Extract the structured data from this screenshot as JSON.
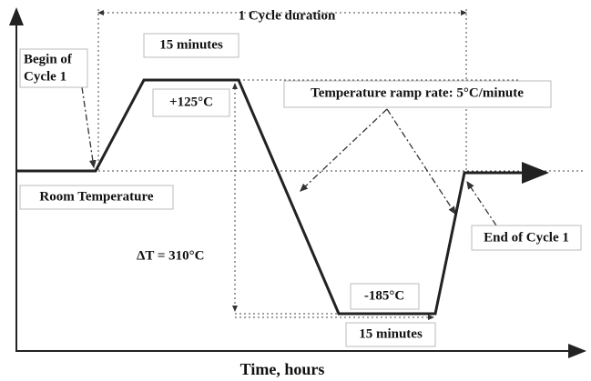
{
  "axis": {
    "x_label": "Time, hours"
  },
  "labels": {
    "cycle_duration": "1 Cycle duration",
    "top_dwell": "15 minutes",
    "begin": [
      "Begin of",
      "Cycle 1"
    ],
    "hot": "+125°C",
    "ramp_rate": "Temperature ramp rate: 5°C/minute",
    "room": "Room Temperature",
    "delta": "ΔT = 310°C",
    "cold": "-185°C",
    "bottom_dwell": "15 minutes",
    "end": "End of Cycle 1"
  }
}
